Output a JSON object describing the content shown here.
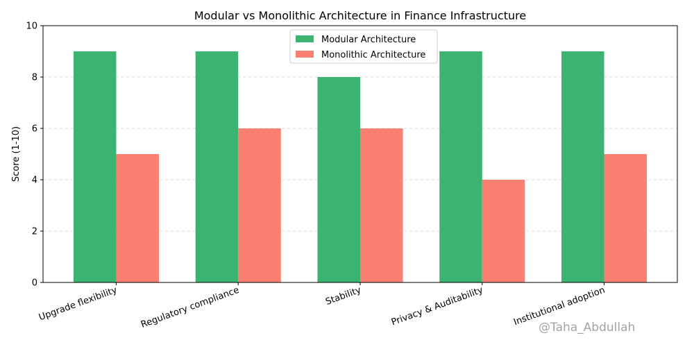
{
  "chart_data": {
    "type": "bar",
    "title": "Modular vs Monolithic Architecture in Finance Infrastructure",
    "xlabel": "",
    "ylabel": "Score (1-10)",
    "ylim": [
      0,
      10
    ],
    "yticks": [
      "0",
      "2",
      "4",
      "6",
      "8",
      "10"
    ],
    "grid": "horizontal-dashed",
    "legend_position": "top-center",
    "categories": [
      "Upgrade flexibility",
      "Regulatory compliance",
      "Stability",
      "Privacy & Auditability",
      "Institutional adoption"
    ],
    "series": [
      {
        "name": "Modular Architecture",
        "color": "#3cb371",
        "values": [
          9,
          9,
          8,
          9,
          9
        ]
      },
      {
        "name": "Monolithic Architecture",
        "color": "#fa8072",
        "values": [
          5,
          6,
          6,
          4,
          5
        ]
      }
    ]
  },
  "watermark": "@Taha_Abdullah"
}
